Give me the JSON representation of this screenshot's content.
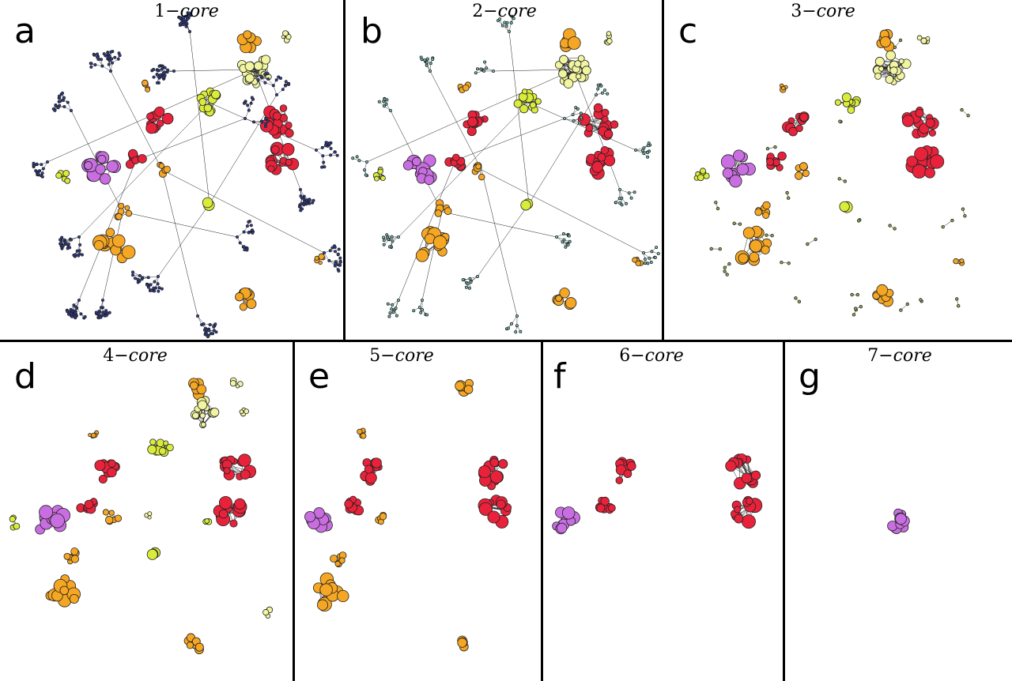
{
  "panels": [
    {
      "letter": "a",
      "core": "1",
      "suffix": "core"
    },
    {
      "letter": "b",
      "core": "2",
      "suffix": "core"
    },
    {
      "letter": "c",
      "core": "3",
      "suffix": "core"
    },
    {
      "letter": "d",
      "core": "4",
      "suffix": "core"
    },
    {
      "letter": "e",
      "core": "5",
      "suffix": "core"
    },
    {
      "letter": "f",
      "core": "6",
      "suffix": "core"
    },
    {
      "letter": "g",
      "core": "7",
      "suffix": "core"
    }
  ],
  "title_separator": "−",
  "colors": {
    "red": "#e8223a",
    "orange": "#f5a623",
    "yellow": "#d9ec3a",
    "pale_yellow": "#f2f5a0",
    "purple": "#c86ee0",
    "dark_blue": "#2f3fa8",
    "teal": "#6fc6c0",
    "olive": "#8aa84a",
    "edge": "#222222",
    "divider": "#000000"
  }
}
